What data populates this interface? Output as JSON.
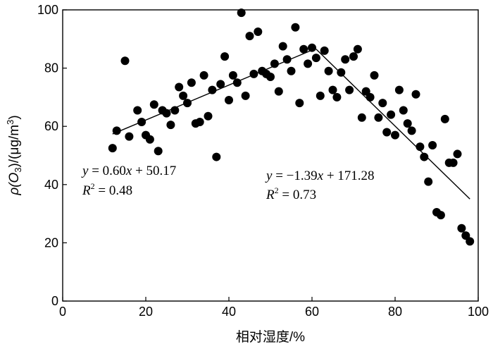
{
  "chart_data": {
    "type": "scatter",
    "xlabel": "相对湿度/%",
    "ylabel_main": "ρ(O",
    "ylabel_sub": "3",
    "ylabel_mid": ")/(μg/m",
    "ylabel_sup": "3",
    "ylabel_end": ")",
    "xlim": [
      0,
      100
    ],
    "ylim": [
      0,
      100
    ],
    "xticks": [
      "0",
      "20",
      "40",
      "60",
      "80",
      "100"
    ],
    "yticks": [
      "0",
      "20",
      "40",
      "60",
      "80",
      "100"
    ],
    "points": [
      [
        12,
        52.5
      ],
      [
        13,
        58.5
      ],
      [
        15,
        82.5
      ],
      [
        16,
        56.5
      ],
      [
        18,
        65.5
      ],
      [
        19,
        61.5
      ],
      [
        20,
        57
      ],
      [
        21,
        55.5
      ],
      [
        22,
        67.5
      ],
      [
        23,
        51.5
      ],
      [
        24,
        65.5
      ],
      [
        25,
        64.5
      ],
      [
        26,
        60.5
      ],
      [
        27,
        65.5
      ],
      [
        28,
        73.5
      ],
      [
        29,
        70.5
      ],
      [
        30,
        68
      ],
      [
        31,
        75
      ],
      [
        32,
        61
      ],
      [
        33,
        61.5
      ],
      [
        34,
        77.5
      ],
      [
        35,
        63.5
      ],
      [
        36,
        72.5
      ],
      [
        37,
        49.5
      ],
      [
        38,
        74.5
      ],
      [
        39,
        84
      ],
      [
        40,
        69
      ],
      [
        41,
        77.5
      ],
      [
        42,
        75
      ],
      [
        43,
        99
      ],
      [
        44,
        70.5
      ],
      [
        45,
        91
      ],
      [
        46,
        78
      ],
      [
        47,
        92.5
      ],
      [
        48,
        79
      ],
      [
        49,
        78
      ],
      [
        50,
        77
      ],
      [
        51,
        81.5
      ],
      [
        52,
        72
      ],
      [
        53,
        87.5
      ],
      [
        54,
        83
      ],
      [
        55,
        79
      ],
      [
        56,
        94
      ],
      [
        57,
        68
      ],
      [
        58,
        86.5
      ],
      [
        59,
        81.5
      ],
      [
        60,
        87
      ],
      [
        61,
        83.5
      ],
      [
        62,
        70.5
      ],
      [
        63,
        86
      ],
      [
        64,
        79
      ],
      [
        65,
        72.5
      ],
      [
        66,
        70
      ],
      [
        67,
        78.5
      ],
      [
        68,
        83
      ],
      [
        69,
        72.5
      ],
      [
        70,
        84
      ],
      [
        71,
        86.5
      ],
      [
        72,
        63
      ],
      [
        73,
        72
      ],
      [
        74,
        70
      ],
      [
        75,
        77.5
      ],
      [
        76,
        63
      ],
      [
        77,
        68
      ],
      [
        78,
        58
      ],
      [
        79,
        64
      ],
      [
        80,
        57
      ],
      [
        81,
        72.5
      ],
      [
        82,
        65.5
      ],
      [
        83,
        61
      ],
      [
        84,
        58.5
      ],
      [
        85,
        71
      ],
      [
        86,
        53
      ],
      [
        87,
        49.5
      ],
      [
        88,
        41
      ],
      [
        89,
        53.5
      ],
      [
        90,
        30.5
      ],
      [
        91,
        29.5
      ],
      [
        92,
        62.5
      ],
      [
        93,
        47.5
      ],
      [
        94,
        47.5
      ],
      [
        95,
        50.5
      ],
      [
        96,
        25
      ],
      [
        97,
        22.5
      ],
      [
        98,
        20.5
      ]
    ],
    "fits": [
      {
        "x_range": [
          12,
          61
        ],
        "slope": 0.6,
        "intercept": 50.17
      },
      {
        "x_range": [
          61,
          98
        ],
        "slope": -1.39,
        "intercept": 171.28
      }
    ],
    "annotations": [
      {
        "eq_prefix": "y",
        "eq_rest": " = 0.60",
        "eq_x": "x",
        "eq_tail": " + 50.17",
        "r2_label": "R",
        "r2_sup": "2",
        "r2_value": " = 0.48"
      },
      {
        "eq_prefix": "y",
        "eq_rest": " = −1.39",
        "eq_x": "x",
        "eq_tail": " + 171.28",
        "r2_label": "R",
        "r2_sup": "2",
        "r2_value": " = 0.73"
      }
    ]
  }
}
